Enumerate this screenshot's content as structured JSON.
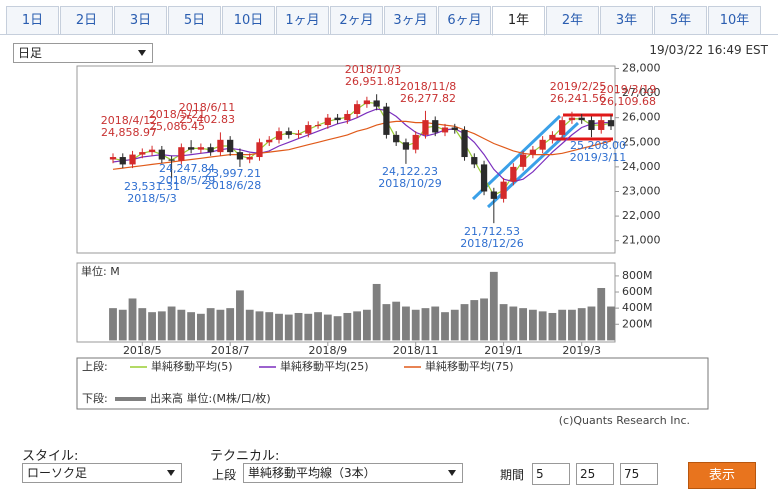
{
  "tabs": {
    "items": [
      "1日",
      "2日",
      "3日",
      "5日",
      "10日",
      "1ヶ月",
      "2ヶ月",
      "3ヶ月",
      "6ヶ月",
      "1年",
      "2年",
      "3年",
      "5年",
      "10年"
    ],
    "selected": 9
  },
  "chart_controls": {
    "period_select": "日足",
    "timestamp": "19/03/22 16:49 EST"
  },
  "chart_data": {
    "type": "candlestick",
    "categories": [
      null,
      null,
      null,
      "2018/5",
      null,
      null,
      null,
      null,
      null,
      null,
      null,
      null,
      "2018/7",
      null,
      null,
      null,
      null,
      null,
      null,
      null,
      null,
      null,
      "2018/9",
      null,
      null,
      null,
      null,
      null,
      null,
      null,
      null,
      "2018/11",
      null,
      null,
      null,
      null,
      null,
      null,
      null,
      null,
      "2019/1",
      null,
      null,
      null,
      null,
      null,
      null,
      null,
      "2019/3",
      null,
      null,
      null
    ],
    "open": [
      24300,
      24400,
      24100,
      24500,
      24600,
      24700,
      24300,
      24250,
      24800,
      24700,
      24800,
      24600,
      25100,
      24600,
      24300,
      24400,
      25000,
      25100,
      25450,
      25300,
      25350,
      25700,
      25700,
      26000,
      25900,
      26150,
      26550,
      26700,
      26450,
      25300,
      25000,
      24700,
      25300,
      25900,
      25400,
      25600,
      25500,
      24400,
      24100,
      23000,
      22700,
      23400,
      24000,
      24500,
      24700,
      25100,
      25300,
      25900,
      26000,
      25900,
      25500,
      25900
    ],
    "high": [
      24550,
      24550,
      24650,
      24750,
      24858.97,
      24850,
      24450,
      24950,
      25086.45,
      24950,
      24950,
      25402.83,
      25250,
      24750,
      24550,
      25150,
      25250,
      25600,
      25600,
      25500,
      25850,
      25850,
      26150,
      26150,
      26300,
      26700,
      26850,
      26951.81,
      26600,
      25450,
      25150,
      25450,
      26277.82,
      26050,
      25750,
      25750,
      25650,
      24550,
      24250,
      23150,
      23550,
      24150,
      24650,
      24850,
      25250,
      25450,
      26050,
      26241.56,
      26150,
      26050,
      26050,
      26109.68
    ],
    "low": [
      24150,
      23950,
      23950,
      24350,
      24450,
      24150,
      23531.31,
      24100,
      24550,
      24550,
      24450,
      24450,
      24450,
      23997.21,
      24150,
      24250,
      24850,
      24950,
      25150,
      25150,
      25200,
      25550,
      25550,
      25750,
      25750,
      26000,
      26400,
      26300,
      25150,
      24850,
      24122.23,
      24550,
      25150,
      25250,
      25250,
      25350,
      24250,
      23950,
      22850,
      21712.53,
      22550,
      23250,
      23850,
      24350,
      24550,
      24950,
      25150,
      25750,
      25750,
      25208,
      25350,
      25500
    ],
    "close": [
      24400,
      24100,
      24500,
      24600,
      24700,
      24300,
      24250,
      24800,
      24700,
      24800,
      24600,
      25100,
      24600,
      24300,
      24400,
      25000,
      25100,
      25450,
      25300,
      25350,
      25700,
      25700,
      26000,
      25900,
      26150,
      26550,
      26700,
      26450,
      25300,
      25000,
      24700,
      25300,
      25900,
      25400,
      25600,
      25500,
      24400,
      24100,
      23000,
      22700,
      23400,
      24000,
      24500,
      24700,
      25100,
      25300,
      25900,
      26000,
      25900,
      25500,
      25900,
      25650
    ],
    "up_color": "#d42a2a",
    "down_color": "#2b2b2b",
    "ylim": [
      20500,
      28100
    ],
    "yticks": [
      {
        "value": 21000,
        "label": "21,000"
      },
      {
        "value": 22000,
        "label": "22,000"
      },
      {
        "value": 23000,
        "label": "23,000"
      },
      {
        "value": 24000,
        "label": "24,000"
      },
      {
        "value": 25000,
        "label": "25,000"
      },
      {
        "value": 26000,
        "label": "26,000"
      },
      {
        "value": 27000,
        "label": "27,000"
      },
      {
        "value": 28000,
        "label": "28,000"
      }
    ],
    "series": [
      {
        "name": "単純移動平均(5)",
        "color": "#9acd32",
        "values": [
          24350,
          24250,
          24300,
          24550,
          24650,
          24500,
          24280,
          24520,
          24750,
          24750,
          24700,
          24850,
          24850,
          24450,
          24350,
          24700,
          25050,
          25280,
          25380,
          25330,
          25520,
          25700,
          25850,
          25950,
          26020,
          26350,
          26620,
          26580,
          25880,
          25150,
          24850,
          25000,
          25600,
          25650,
          25500,
          25550,
          24950,
          24250,
          23550,
          22850,
          23050,
          23700,
          24250,
          24600,
          24900,
          25200,
          25600,
          25950,
          25950,
          25700,
          25700,
          25780
        ]
      },
      {
        "name": "単純移動平均(25)",
        "color": "#7b2fbe",
        "values": [
          24200,
          24250,
          24300,
          24400,
          24450,
          24500,
          24450,
          24450,
          24500,
          24550,
          24600,
          24700,
          24750,
          24700,
          24600,
          24550,
          24650,
          24850,
          25000,
          25150,
          25300,
          25450,
          25600,
          25750,
          25850,
          26000,
          26200,
          26350,
          26300,
          26050,
          25700,
          25400,
          25250,
          25350,
          25500,
          25550,
          25350,
          25000,
          24500,
          23900,
          23500,
          23400,
          23500,
          23800,
          24200,
          24600,
          24950,
          25300,
          25600,
          25750,
          25800,
          25800
        ]
      },
      {
        "name": "単純移動平均(75)",
        "color": "#e05a1a",
        "values": [
          23900,
          23950,
          24000,
          24050,
          24100,
          24150,
          24200,
          24250,
          24300,
          24350,
          24400,
          24450,
          24500,
          24500,
          24500,
          24550,
          24600,
          24650,
          24700,
          24800,
          24900,
          25000,
          25100,
          25200,
          25300,
          25450,
          25550,
          25700,
          25800,
          25850,
          25850,
          25800,
          25800,
          25750,
          25700,
          25650,
          25500,
          25350,
          25150,
          24950,
          24800,
          24650,
          24550,
          24500,
          24500,
          24500,
          24550,
          24650,
          24750,
          24850,
          24950,
          25050
        ]
      }
    ],
    "volume": {
      "name": "出来高 単位:(M株/口/枚)",
      "unit_label": "単位: M",
      "color": "#7f7f7f",
      "values": [
        400,
        380,
        520,
        400,
        350,
        360,
        420,
        380,
        350,
        330,
        400,
        380,
        400,
        620,
        380,
        360,
        350,
        330,
        320,
        340,
        330,
        350,
        320,
        300,
        340,
        360,
        380,
        700,
        450,
        480,
        420,
        380,
        400,
        420,
        350,
        380,
        450,
        500,
        520,
        850,
        450,
        420,
        400,
        380,
        360,
        340,
        380,
        380,
        400,
        420,
        650,
        420
      ],
      "ylim": [
        -20,
        960
      ],
      "yticks": [
        {
          "value": 200,
          "label": "200M"
        },
        {
          "value": 400,
          "label": "400M"
        },
        {
          "value": 600,
          "label": "600M"
        },
        {
          "value": 800,
          "label": "800M"
        }
      ]
    },
    "annotations": [
      {
        "lines": [
          "2018/4/12",
          "24,858.97"
        ],
        "color": "#c83232"
      },
      {
        "lines": [
          "2018/5/21",
          "25,086.45"
        ],
        "color": "#c83232"
      },
      {
        "lines": [
          "2018/6/11",
          "25,402.83"
        ],
        "color": "#c83232"
      },
      {
        "lines": [
          "2018/10/3",
          "26,951.81"
        ],
        "color": "#c83232"
      },
      {
        "lines": [
          "2018/11/8",
          "26,277.82"
        ],
        "color": "#c83232"
      },
      {
        "lines": [
          "2019/2/25",
          "26,241.56"
        ],
        "color": "#c83232"
      },
      {
        "lines": [
          "2019/3/19",
          "26,109.68"
        ],
        "color": "#c83232"
      },
      {
        "lines": [
          "23,531.31",
          "2018/5/3"
        ],
        "color": "#2f6fd0"
      },
      {
        "lines": [
          "24,247.84",
          "2018/5/29"
        ],
        "color": "#2f6fd0"
      },
      {
        "lines": [
          "23,997.21",
          "2018/6/28"
        ],
        "color": "#2f6fd0"
      },
      {
        "lines": [
          "24,122.23",
          "2018/10/29"
        ],
        "color": "#2f6fd0"
      },
      {
        "lines": [
          "21,712.53",
          "2018/12/26"
        ],
        "color": "#2f6fd0"
      },
      {
        "lines": [
          "25,208.00",
          "2019/3/11"
        ],
        "color": "#2f6fd0"
      }
    ]
  },
  "legend_box": {
    "upper_label": "上段:",
    "lower_label": "下段:"
  },
  "copyright": "(c)Quants Research Inc.",
  "form": {
    "style_label": "スタイル:",
    "style_value": "ローソク足",
    "technical_label": "テクニカル:",
    "upper_label": "上段",
    "technical_value": "単純移動平均線（3本）",
    "period_label": "期間",
    "periods": [
      "5",
      "25",
      "75"
    ],
    "button": "表示"
  }
}
